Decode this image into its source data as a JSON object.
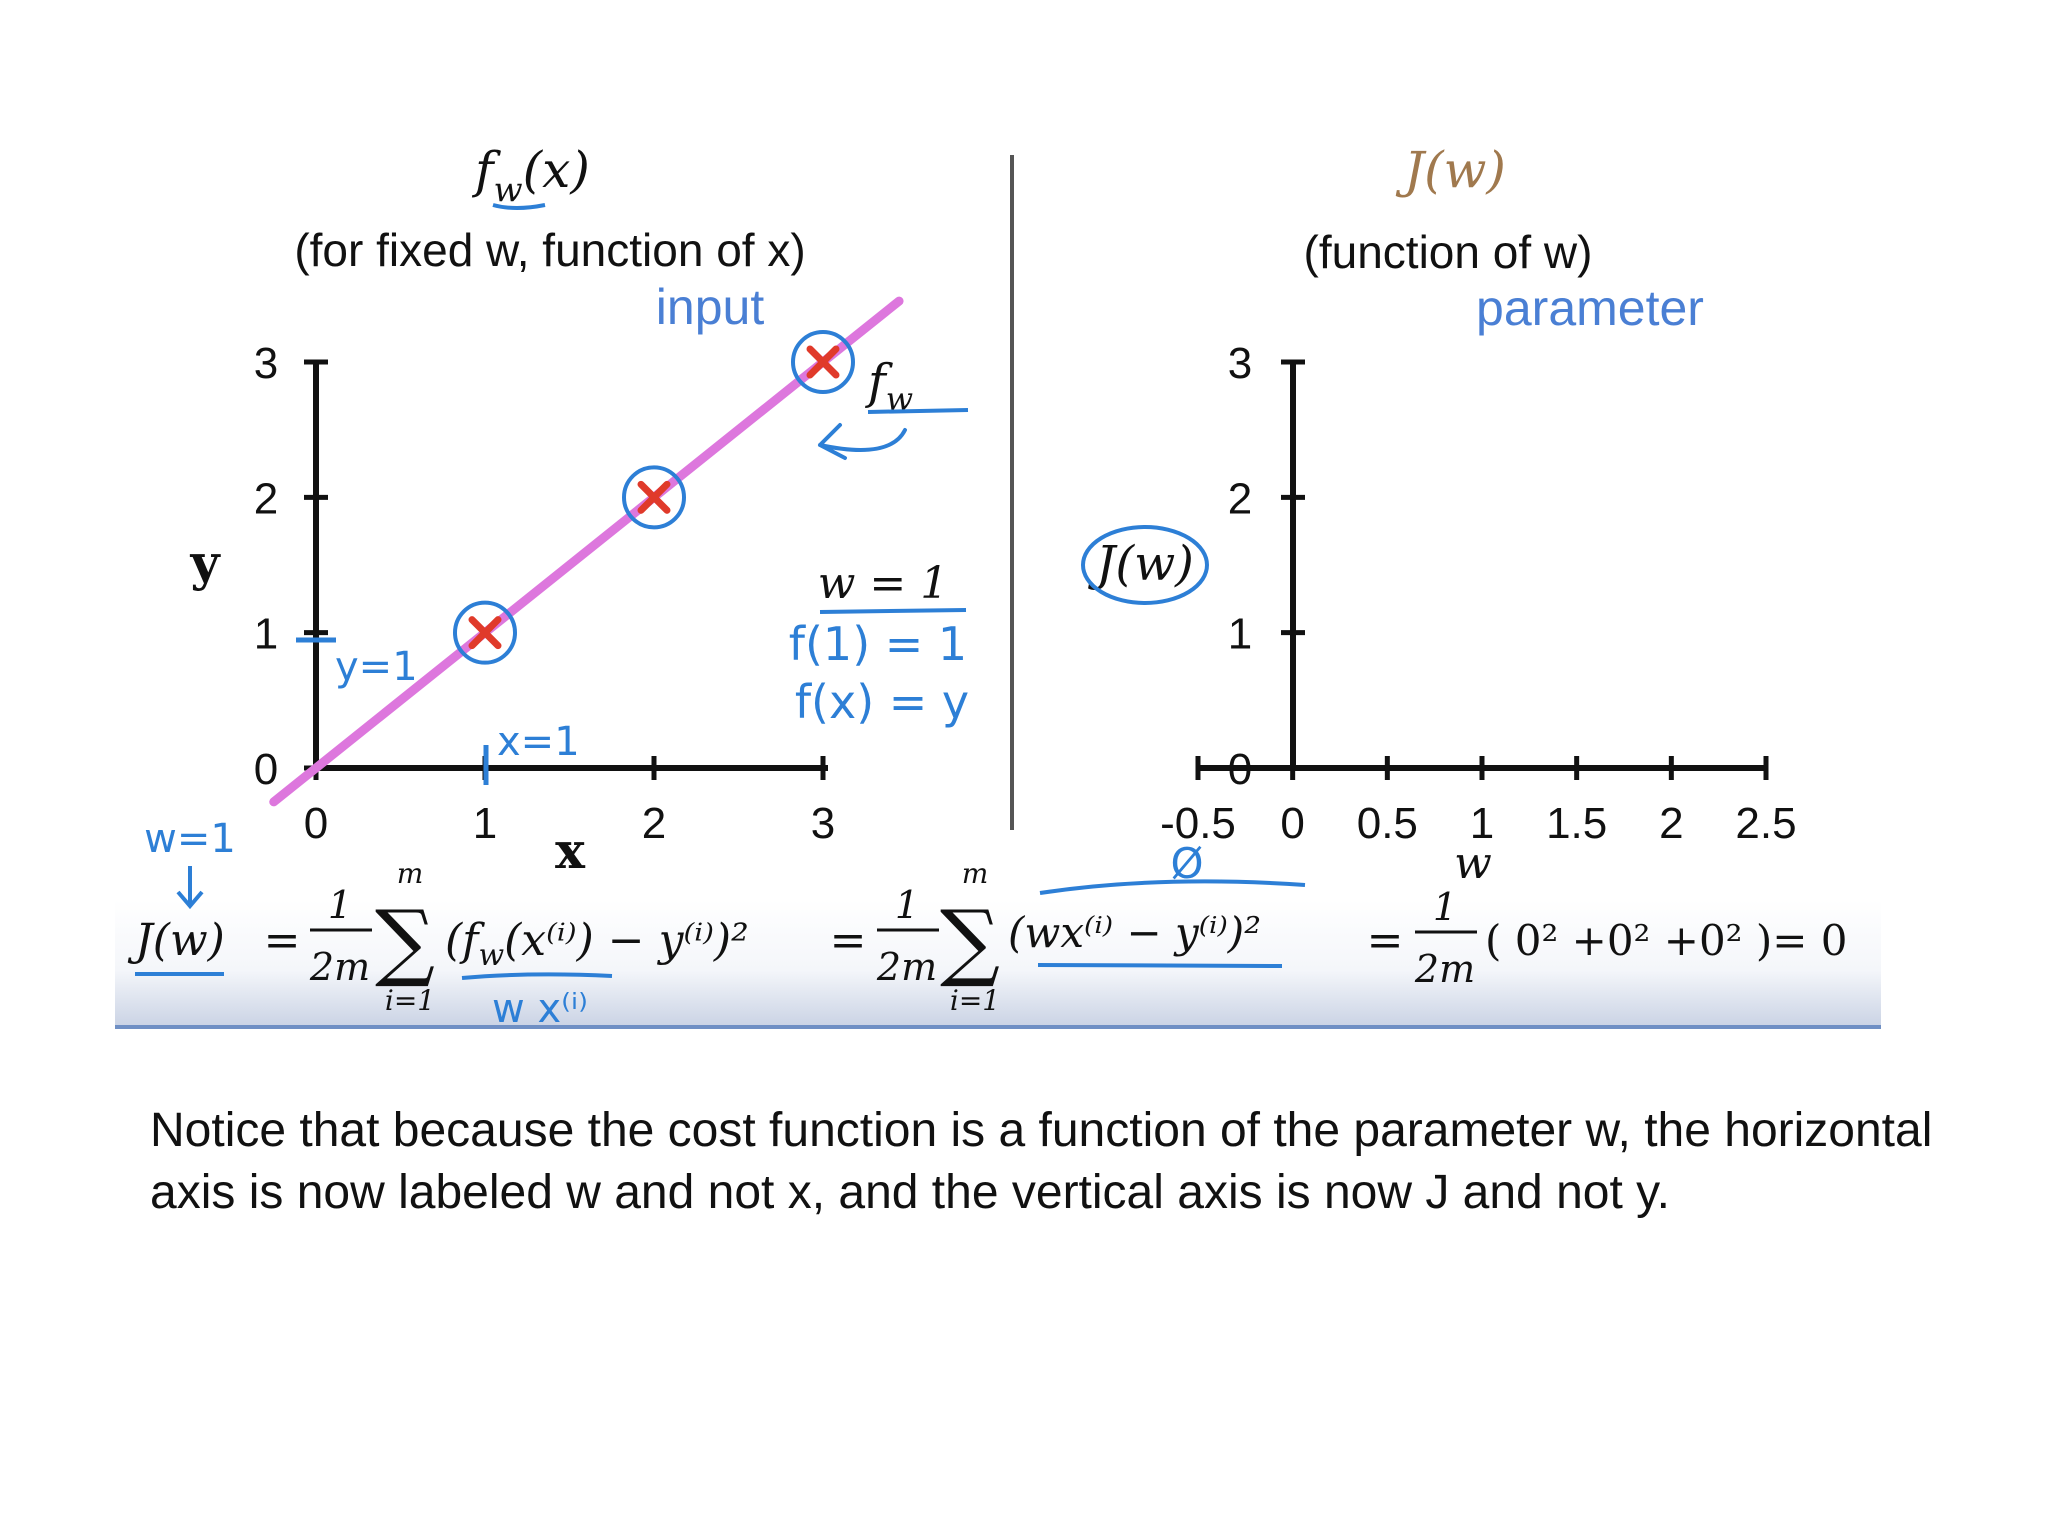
{
  "left_panel": {
    "title": "f",
    "title_sub": "w",
    "title_arg": "(x)",
    "subtitle": "(for fixed w, function of x)",
    "annotation_input": "input",
    "ylabel": "y",
    "xlabel": "x",
    "fw_label": "f",
    "fw_sub": "w",
    "w_eq": "w = 1",
    "f1_eq": "f(1) = 1",
    "fx_eq": "f(x) = y",
    "y_eq_note": "y=1",
    "x_eq_note": "x=1"
  },
  "right_panel": {
    "title": "J(w)",
    "subtitle": "(function of w)",
    "annotation_parameter": "parameter",
    "ylabel": "J(w)",
    "xlabel": "w",
    "zero_note": "Ø"
  },
  "equation": {
    "w_note": "w=1",
    "lhs": "J(w)",
    "eq1": "=",
    "frac_num": "1",
    "frac_den": "2m",
    "sum_top": "m",
    "sum_bottom": "i=1",
    "term1": "(f",
    "term1_sub": "w",
    "term1_rest": "(x⁽ⁱ⁾) − y⁽ⁱ⁾)²",
    "wx_note": "w x⁽ⁱ⁾",
    "eq2": "=",
    "term2": "(wx⁽ⁱ⁾ − y⁽ⁱ⁾)²",
    "eq3": "=",
    "term3": "( 0² +0² +0² )= 0"
  },
  "caption": "Notice that because the cost function is a function of the parameter w,  the horizontal axis is now labeled w and not x,  and the vertical axis is now J and not y.",
  "colors": {
    "fit_line": "#dd77dd",
    "data_x": "#e03a2a",
    "handwriting": "#2d7fd6",
    "jw_title": "#a0794e",
    "axis": "#111111"
  },
  "chart_data": [
    {
      "type": "scatter",
      "title": "fw(x)",
      "subtitle": "(for fixed w, function of x)",
      "xlabel": "x",
      "ylabel": "y",
      "xlim": [
        0,
        3
      ],
      "ylim": [
        0,
        3
      ],
      "x_ticks": [
        "0",
        "1",
        "2",
        "3"
      ],
      "y_ticks": [
        "0",
        "1",
        "2",
        "3"
      ],
      "points": [
        {
          "x": 1,
          "y": 1
        },
        {
          "x": 2,
          "y": 2
        },
        {
          "x": 3,
          "y": 3
        }
      ],
      "line": {
        "name": "fw",
        "slope": 1,
        "intercept": 0,
        "x_from": -0.25,
        "x_to": 3.45
      }
    },
    {
      "type": "line",
      "title": "J(w)",
      "subtitle": "(function of w)",
      "xlabel": "w",
      "ylabel": "J(w)",
      "xlim": [
        -0.5,
        2.5
      ],
      "ylim": [
        0,
        3
      ],
      "x_ticks": [
        "-0.5",
        "0",
        "0.5",
        "1",
        "1.5",
        "2",
        "2.5"
      ],
      "y_ticks": [
        "0",
        "1",
        "2",
        "3"
      ],
      "series": []
    }
  ]
}
